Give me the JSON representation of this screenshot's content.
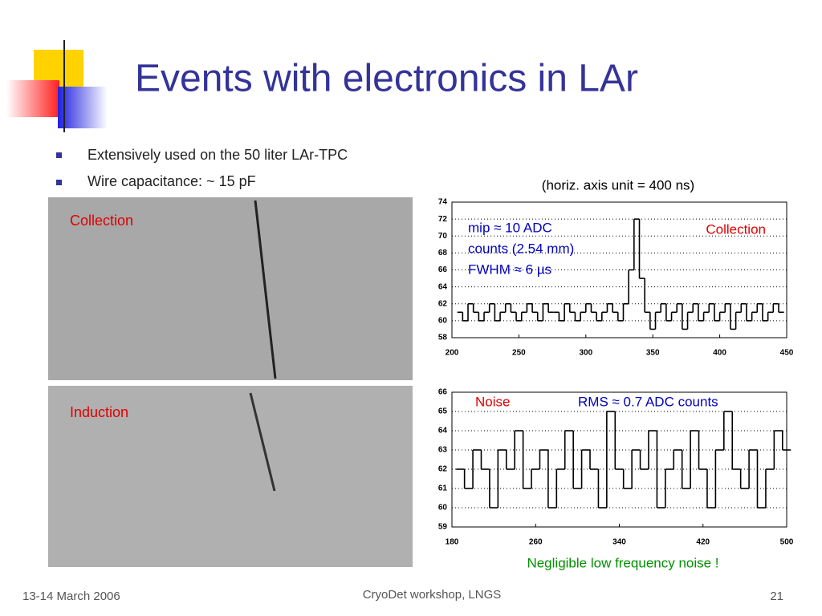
{
  "slide": {
    "title": "Events with electronics in LAr",
    "bullets": [
      "Extensively used on the 50 liter LAr-TPC",
      "Wire capacitance: ~ 15 pF"
    ],
    "images": [
      {
        "label": "Collection"
      },
      {
        "label": "Induction"
      }
    ],
    "footer": {
      "date": "13-14 March 2006",
      "event": "CryoDet workshop, LNGS",
      "page": "21"
    }
  },
  "chart_data": [
    {
      "type": "line",
      "step": true,
      "color": "#000000",
      "grid": true,
      "subtitle": "(horiz. axis unit = 400 ns)",
      "annotations": [
        "mip ≈ 10 ADC",
        "counts (2.54 mm)",
        "FWHM ≈ 6 µs",
        "Collection"
      ],
      "x": [
        204,
        208,
        212,
        216,
        220,
        224,
        228,
        232,
        236,
        240,
        244,
        248,
        252,
        256,
        260,
        264,
        268,
        272,
        276,
        280,
        284,
        288,
        292,
        296,
        300,
        304,
        308,
        312,
        316,
        320,
        324,
        328,
        332,
        336,
        340,
        344,
        348,
        352,
        356,
        360,
        364,
        368,
        372,
        376,
        380,
        384,
        388,
        392,
        396,
        400,
        404,
        408,
        412,
        416,
        420,
        424,
        428,
        432,
        436,
        440,
        444
      ],
      "values": [
        61,
        60,
        62,
        61,
        60,
        61,
        62,
        60,
        61,
        62,
        61,
        60,
        61,
        62,
        61,
        60,
        62,
        61,
        61,
        60,
        62,
        61,
        60,
        61,
        62,
        61,
        60,
        61,
        62,
        61,
        60,
        62,
        66,
        72,
        65,
        61,
        59,
        61,
        62,
        60,
        61,
        62,
        59,
        61,
        62,
        60,
        61,
        62,
        60,
        61,
        62,
        59,
        61,
        62,
        60,
        61,
        62,
        60,
        61,
        62,
        61
      ],
      "xlim": [
        200,
        450
      ],
      "xticks": [
        200,
        250,
        300,
        350,
        400,
        450
      ],
      "ylim": [
        58,
        74
      ],
      "yticks": [
        58,
        60,
        62,
        64,
        66,
        68,
        70,
        72,
        74
      ]
    },
    {
      "type": "line",
      "step": true,
      "color": "#000000",
      "grid": true,
      "annotations": [
        "Noise",
        "RMS ≈ 0.7 ADC counts"
      ],
      "note": "Negligible low frequency noise !",
      "x": [
        184,
        192,
        200,
        208,
        216,
        224,
        232,
        240,
        248,
        256,
        264,
        272,
        280,
        288,
        296,
        304,
        312,
        320,
        328,
        336,
        344,
        352,
        360,
        368,
        376,
        384,
        392,
        400,
        408,
        416,
        424,
        432,
        440,
        448,
        456,
        464,
        472,
        480,
        488,
        496
      ],
      "values": [
        62,
        61,
        63,
        62,
        60,
        63,
        62,
        64,
        61,
        62,
        63,
        60,
        62,
        64,
        61,
        63,
        62,
        60,
        65,
        62,
        61,
        63,
        62,
        64,
        60,
        62,
        63,
        61,
        64,
        62,
        60,
        63,
        65,
        62,
        61,
        63,
        60,
        62,
        64,
        63
      ],
      "xlim": [
        180,
        500
      ],
      "xticks": [
        180,
        260,
        340,
        420,
        500
      ],
      "ylim": [
        59,
        66
      ],
      "yticks": [
        59,
        60,
        61,
        62,
        63,
        64,
        65,
        66
      ]
    }
  ]
}
